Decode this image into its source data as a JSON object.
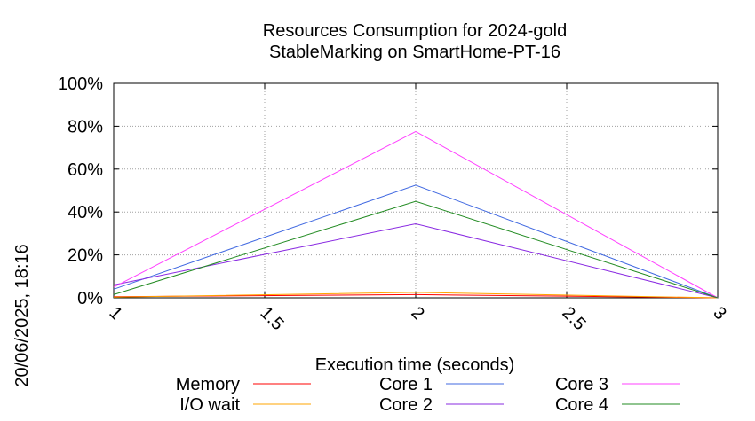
{
  "chart_data": {
    "type": "line",
    "title": [
      "Resources Consumption for 2024-gold",
      "StableMarking on SmartHome-PT-16"
    ],
    "xlabel": "Execution time (seconds)",
    "ylabel": "",
    "side_label": "20/06/2025, 18:16",
    "xlim": [
      1,
      3
    ],
    "ylim": [
      0,
      100
    ],
    "x_ticks": [
      1,
      1.5,
      2,
      2.5,
      3
    ],
    "x_tick_labels": [
      "1",
      "1.5",
      "2",
      "2.5",
      "3"
    ],
    "y_ticks": [
      0,
      20,
      40,
      60,
      80,
      100
    ],
    "y_tick_labels": [
      "0%",
      "20%",
      "40%",
      "60%",
      "80%",
      "100%"
    ],
    "grid": true,
    "legend_position": "bottom",
    "series": [
      {
        "name": "Memory",
        "color": "#ff0000",
        "x": [
          1,
          2,
          3
        ],
        "y": [
          0.5,
          1.5,
          0
        ]
      },
      {
        "name": "I/O wait",
        "color": "#ffa500",
        "x": [
          1,
          2,
          3
        ],
        "y": [
          0.3,
          2.5,
          0
        ]
      },
      {
        "name": "Core 1",
        "color": "#4169e1",
        "x": [
          1,
          2,
          3
        ],
        "y": [
          4,
          52.5,
          0
        ]
      },
      {
        "name": "Core 2",
        "color": "#8a2be2",
        "x": [
          1,
          2,
          3
        ],
        "y": [
          6,
          34.5,
          0
        ]
      },
      {
        "name": "Core 3",
        "color": "#ff40ff",
        "x": [
          1,
          2,
          3
        ],
        "y": [
          5,
          77.5,
          0
        ]
      },
      {
        "name": "Core 4",
        "color": "#228b22",
        "x": [
          1,
          2,
          3
        ],
        "y": [
          1.5,
          45,
          0
        ]
      }
    ]
  }
}
